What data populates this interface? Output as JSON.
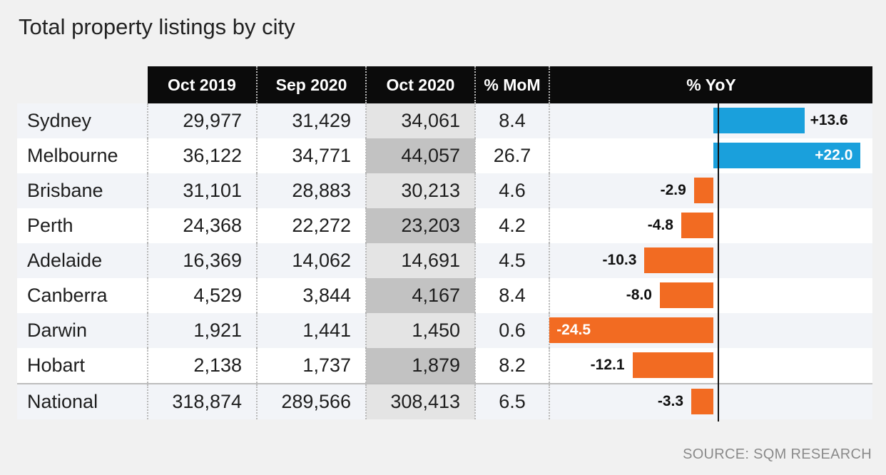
{
  "title": "Total property listings by city",
  "source": "SOURCE: SQM RESEARCH",
  "colors": {
    "positive": "#1aa0dc",
    "negative": "#f26b22",
    "header": "#0b0b0b"
  },
  "chart_data": {
    "type": "table",
    "title": "Total property listings by city",
    "columns": [
      "Oct 2019",
      "Sep 2020",
      "Oct 2020",
      "% MoM",
      "% YoY"
    ],
    "bar_column": "% YoY",
    "yoy_range": [
      -24.5,
      22.0
    ],
    "rows": [
      {
        "city": "Sydney",
        "oct2019": "29,977",
        "sep2020": "31,429",
        "oct2020": "34,061",
        "mom": "8.4",
        "yoy": 13.6,
        "yoy_label": "+13.6"
      },
      {
        "city": "Melbourne",
        "oct2019": "36,122",
        "sep2020": "34,771",
        "oct2020": "44,057",
        "mom": "26.7",
        "yoy": 22.0,
        "yoy_label": "+22.0"
      },
      {
        "city": "Brisbane",
        "oct2019": "31,101",
        "sep2020": "28,883",
        "oct2020": "30,213",
        "mom": "4.6",
        "yoy": -2.9,
        "yoy_label": "-2.9"
      },
      {
        "city": "Perth",
        "oct2019": "24,368",
        "sep2020": "22,272",
        "oct2020": "23,203",
        "mom": "4.2",
        "yoy": -4.8,
        "yoy_label": "-4.8"
      },
      {
        "city": "Adelaide",
        "oct2019": "16,369",
        "sep2020": "14,062",
        "oct2020": "14,691",
        "mom": "4.5",
        "yoy": -10.3,
        "yoy_label": "-10.3"
      },
      {
        "city": "Canberra",
        "oct2019": "4,529",
        "sep2020": "3,844",
        "oct2020": "4,167",
        "mom": "8.4",
        "yoy": -8.0,
        "yoy_label": "-8.0"
      },
      {
        "city": "Darwin",
        "oct2019": "1,921",
        "sep2020": "1,441",
        "oct2020": "1,450",
        "mom": "0.6",
        "yoy": -24.5,
        "yoy_label": "-24.5"
      },
      {
        "city": "Hobart",
        "oct2019": "2,138",
        "sep2020": "1,737",
        "oct2020": "1,879",
        "mom": "8.2",
        "yoy": -12.1,
        "yoy_label": "-12.1"
      },
      {
        "city": "National",
        "oct2019": "318,874",
        "sep2020": "289,566",
        "oct2020": "308,413",
        "mom": "6.5",
        "yoy": -3.3,
        "yoy_label": "-3.3"
      }
    ]
  }
}
